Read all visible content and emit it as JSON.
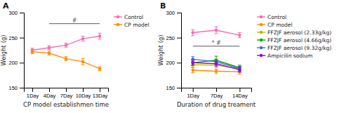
{
  "chart_data": [
    {
      "type": "line",
      "title": "A",
      "x_label": "CP model establishmen time",
      "y_label": "Weight (g)",
      "categories": [
        "1Day",
        "4Day",
        "7Day",
        "10Day",
        "13Day"
      ],
      "ylim": [
        150,
        300
      ],
      "yticks": [
        150,
        200,
        250,
        300
      ],
      "marker": "circle",
      "legend": "right",
      "series": [
        {
          "name": "Control",
          "color": "#FF69B4",
          "values": [
            225,
            230,
            235,
            248,
            253
          ],
          "errors": [
            4,
            4,
            4,
            5,
            6
          ]
        },
        {
          "name": "CP model",
          "color": "#FF8C00",
          "values": [
            222,
            219,
            208,
            202,
            188
          ],
          "errors": [
            4,
            4,
            4,
            6,
            4
          ]
        }
      ],
      "annotations": [
        {
          "text": "#",
          "from": "4Day",
          "to": "13Day",
          "y": 278
        }
      ]
    },
    {
      "type": "line",
      "title": "B",
      "x_label": "Duration of drug treament",
      "y_label": "Weight (g)",
      "categories": [
        "1Day",
        "7Day",
        "14Day"
      ],
      "ylim": [
        150,
        300
      ],
      "yticks": [
        150,
        200,
        250,
        300
      ],
      "marker": "circle",
      "legend": "right",
      "series": [
        {
          "name": "Control",
          "color": "#FF69B4",
          "values": [
            260,
            265,
            255
          ],
          "errors": [
            6,
            7,
            5
          ]
        },
        {
          "name": "CP model",
          "color": "#FF8C00",
          "values": [
            185,
            183,
            182
          ],
          "errors": [
            5,
            4,
            5
          ]
        },
        {
          "name": "FFZJF aerosol (2.33g/kg)",
          "color": "#BBBB00",
          "values": [
            196,
            195,
            188
          ],
          "errors": [
            5,
            5,
            5
          ]
        },
        {
          "name": "FFZJF aerosol (4.66g/kg)",
          "color": "#00AA00",
          "values": [
            200,
            205,
            190
          ],
          "errors": [
            5,
            8,
            5
          ]
        },
        {
          "name": "FFZJF aerosol (9.32g/kg)",
          "color": "#4169E1",
          "values": [
            207,
            202,
            188
          ],
          "errors": [
            5,
            5,
            5
          ]
        },
        {
          "name": "Ampicilin sodium",
          "color": "#9400D3",
          "values": [
            200,
            198,
            186
          ],
          "errors": [
            5,
            5,
            5
          ]
        }
      ],
      "annotations": [
        {
          "text": "* #",
          "from": "1Day",
          "to": "14Day",
          "y": 233
        }
      ]
    }
  ]
}
